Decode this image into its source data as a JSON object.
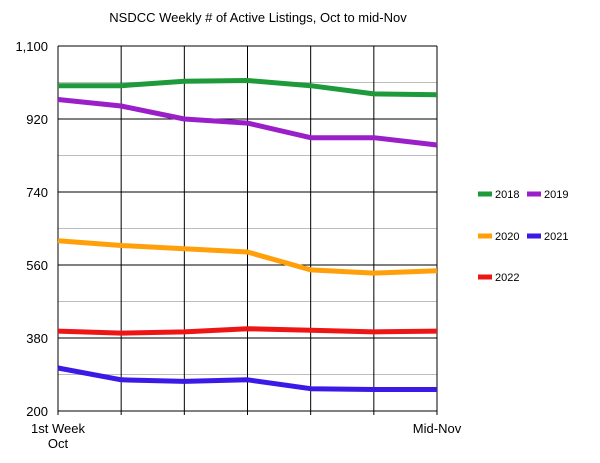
{
  "chart_data": {
    "type": "line",
    "title": "NSDCC Weekly # of Active Listings, Oct to mid-Nov",
    "xlabel": "",
    "ylabel": "",
    "x_tick_labels": [
      {
        "index": 0,
        "lines": [
          "1st Week",
          "Oct"
        ]
      },
      {
        "index": 6,
        "lines": [
          "Mid-Nov"
        ]
      }
    ],
    "points_per_series": 7,
    "ylim": [
      200,
      1100
    ],
    "yticks": [
      200,
      380,
      560,
      740,
      920,
      1100
    ],
    "ytick_labels": [
      "200",
      "380",
      "560",
      "740",
      "920",
      "1,100"
    ],
    "grid": true,
    "legend_position": "right",
    "series": [
      {
        "name": "2018",
        "color": "#1e9a3b",
        "values": [
          1002,
          1002,
          1013,
          1015,
          1002,
          982,
          980
        ]
      },
      {
        "name": "2019",
        "color": "#9b1fc9",
        "values": [
          968,
          952,
          920,
          910,
          874,
          874,
          856
        ]
      },
      {
        "name": "2020",
        "color": "#ff9f0a",
        "values": [
          620,
          608,
          600,
          592,
          548,
          540,
          546
        ]
      },
      {
        "name": "2021",
        "color": "#3a1ae6",
        "values": [
          306,
          277,
          273,
          277,
          255,
          253,
          253
        ]
      },
      {
        "name": "2022",
        "color": "#ee1515",
        "values": [
          397,
          392,
          395,
          403,
          399,
          395,
          397
        ]
      }
    ]
  }
}
